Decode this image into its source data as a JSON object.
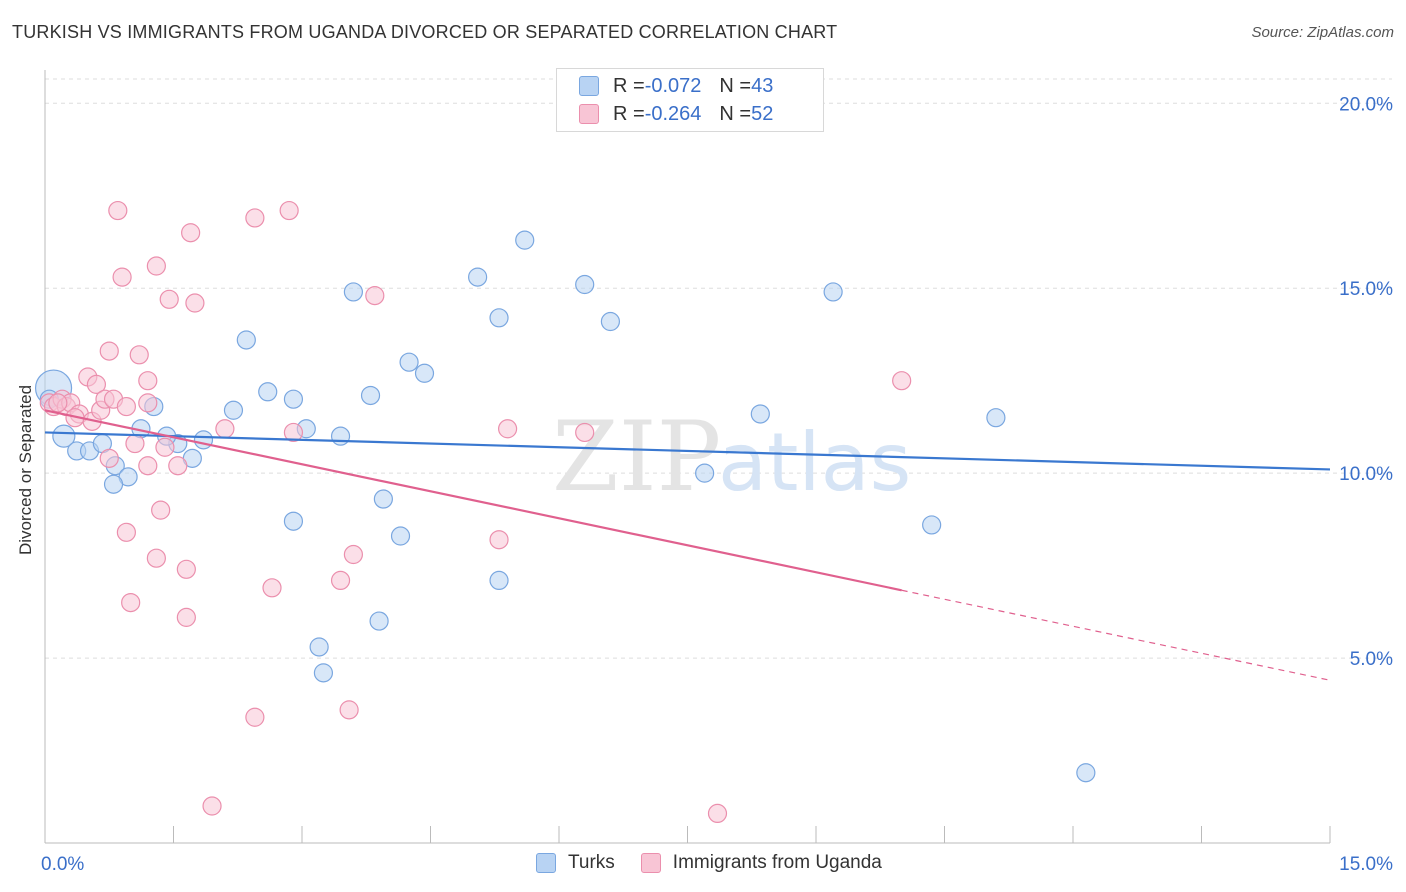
{
  "header": {
    "title": "TURKISH VS IMMIGRANTS FROM UGANDA DIVORCED OR SEPARATED CORRELATION CHART",
    "source": "Source: ZipAtlas.com"
  },
  "legend": {
    "rows": [
      {
        "r_label": "R = ",
        "r_value": "-0.072",
        "n_label": "N = ",
        "n_value": "43"
      },
      {
        "r_label": "R = ",
        "r_value": "-0.264",
        "n_label": "N = ",
        "n_value": "52"
      }
    ]
  },
  "chart_data": {
    "type": "scatter",
    "title": "TURKISH VS IMMIGRANTS FROM UGANDA DIVORCED OR SEPARATED CORRELATION CHART",
    "xlabel": "",
    "ylabel": "Divorced or Separated",
    "xlim": [
      0,
      15
    ],
    "ylim": [
      0,
      20.9
    ],
    "x_tick_labels": [
      {
        "value": 0,
        "label": "0.0%"
      },
      {
        "value": 15,
        "label": "15.0%"
      }
    ],
    "y_tick_labels": [
      {
        "value": 5,
        "label": "5.0%"
      },
      {
        "value": 10,
        "label": "10.0%"
      },
      {
        "value": 15,
        "label": "15.0%"
      },
      {
        "value": 20,
        "label": "20.0%"
      }
    ],
    "watermark": {
      "zip": "ZIP",
      "atlas": "atlas"
    },
    "colors": {
      "turks_fill": "#b8d3f3",
      "turks_stroke": "#7aa7e0",
      "turks_line": "#3a78d0",
      "uganda_fill": "#f8c5d5",
      "uganda_stroke": "#eb8fad",
      "uganda_line": "#e0608e",
      "axis_label": "#3a6fc9",
      "grid": "#dddddd"
    },
    "series": [
      {
        "name": "Turks",
        "R": -0.072,
        "N": 43,
        "trend": {
          "x0": 0,
          "y0": 11.1,
          "x1": 15,
          "y1": 10.1,
          "dashed_from": null
        },
        "points": [
          [
            0.1,
            12.3,
            18
          ],
          [
            0.22,
            11.0,
            11
          ],
          [
            0.37,
            10.6,
            9
          ],
          [
            0.52,
            10.6,
            9
          ],
          [
            0.67,
            10.8,
            9
          ],
          [
            0.82,
            10.2,
            9
          ],
          [
            0.97,
            9.9,
            9
          ],
          [
            1.12,
            11.2,
            9
          ],
          [
            1.27,
            11.8,
            9
          ],
          [
            1.55,
            10.8,
            9
          ],
          [
            1.42,
            11.0,
            9
          ],
          [
            1.85,
            10.9,
            9
          ],
          [
            1.72,
            10.4,
            9
          ],
          [
            2.35,
            13.6,
            9
          ],
          [
            2.6,
            12.2,
            9
          ],
          [
            2.9,
            12.0,
            9
          ],
          [
            3.05,
            11.2,
            9
          ],
          [
            2.2,
            11.7,
            9
          ],
          [
            3.45,
            11.0,
            9
          ],
          [
            3.6,
            14.9,
            9
          ],
          [
            3.8,
            12.1,
            9
          ],
          [
            4.25,
            13.0,
            9
          ],
          [
            4.43,
            12.7,
            9
          ],
          [
            5.05,
            15.3,
            9
          ],
          [
            5.3,
            14.2,
            9
          ],
          [
            5.6,
            16.3,
            9
          ],
          [
            6.3,
            15.1,
            9
          ],
          [
            6.6,
            14.1,
            9
          ],
          [
            9.2,
            14.9,
            9
          ],
          [
            8.35,
            11.6,
            9
          ],
          [
            7.7,
            10.0,
            9
          ],
          [
            10.35,
            8.6,
            9
          ],
          [
            11.1,
            11.5,
            9
          ],
          [
            12.15,
            1.9,
            9
          ],
          [
            0.8,
            9.7,
            9
          ],
          [
            3.95,
            9.3,
            9
          ],
          [
            4.15,
            8.3,
            9
          ],
          [
            2.9,
            8.7,
            9
          ],
          [
            5.3,
            7.1,
            9
          ],
          [
            3.9,
            6.0,
            9
          ],
          [
            3.2,
            5.3,
            9
          ],
          [
            3.25,
            4.6,
            9
          ],
          [
            0.05,
            12.0,
            9
          ]
        ]
      },
      {
        "name": "Immigrants from Uganda",
        "R": -0.264,
        "N": 52,
        "trend": {
          "x0": 0,
          "y0": 11.7,
          "x1": 15,
          "y1": 4.4,
          "dashed_from": 10.0
        },
        "points": [
          [
            0.05,
            11.9,
            9
          ],
          [
            0.1,
            11.8,
            9
          ],
          [
            0.2,
            12.0,
            9
          ],
          [
            0.25,
            11.8,
            9
          ],
          [
            0.3,
            11.9,
            9
          ],
          [
            0.4,
            11.6,
            9
          ],
          [
            0.5,
            12.6,
            9
          ],
          [
            0.55,
            11.4,
            9
          ],
          [
            0.6,
            12.4,
            9
          ],
          [
            0.65,
            11.7,
            9
          ],
          [
            0.7,
            12.0,
            9
          ],
          [
            0.8,
            12.0,
            9
          ],
          [
            0.9,
            15.3,
            9
          ],
          [
            0.85,
            17.1,
            9
          ],
          [
            1.1,
            13.2,
            9
          ],
          [
            1.2,
            11.9,
            9
          ],
          [
            1.3,
            15.6,
            9
          ],
          [
            1.45,
            14.7,
            9
          ],
          [
            1.7,
            16.5,
            9
          ],
          [
            1.75,
            14.6,
            9
          ],
          [
            1.2,
            12.5,
            9
          ],
          [
            1.05,
            10.8,
            9
          ],
          [
            1.2,
            10.2,
            9
          ],
          [
            1.4,
            10.7,
            9
          ],
          [
            1.55,
            10.2,
            9
          ],
          [
            2.1,
            11.2,
            9
          ],
          [
            2.45,
            16.9,
            9
          ],
          [
            2.85,
            17.1,
            9
          ],
          [
            2.9,
            11.1,
            9
          ],
          [
            0.75,
            10.4,
            9
          ],
          [
            1.35,
            9.0,
            9
          ],
          [
            1.65,
            7.4,
            9
          ],
          [
            1.3,
            7.7,
            9
          ],
          [
            0.95,
            8.4,
            9
          ],
          [
            1.0,
            6.5,
            9
          ],
          [
            1.65,
            6.1,
            9
          ],
          [
            2.65,
            6.9,
            9
          ],
          [
            3.6,
            7.8,
            9
          ],
          [
            3.45,
            7.1,
            9
          ],
          [
            3.85,
            14.8,
            9
          ],
          [
            5.4,
            11.2,
            9
          ],
          [
            6.3,
            11.1,
            9
          ],
          [
            5.3,
            8.2,
            9
          ],
          [
            10.0,
            12.5,
            9
          ],
          [
            2.45,
            3.4,
            9
          ],
          [
            3.55,
            3.6,
            9
          ],
          [
            1.95,
            1.0,
            9
          ],
          [
            7.85,
            0.8,
            9
          ],
          [
            0.15,
            11.9,
            9
          ],
          [
            0.35,
            11.5,
            9
          ],
          [
            0.95,
            11.8,
            9
          ],
          [
            0.75,
            13.3,
            9
          ]
        ]
      }
    ]
  }
}
